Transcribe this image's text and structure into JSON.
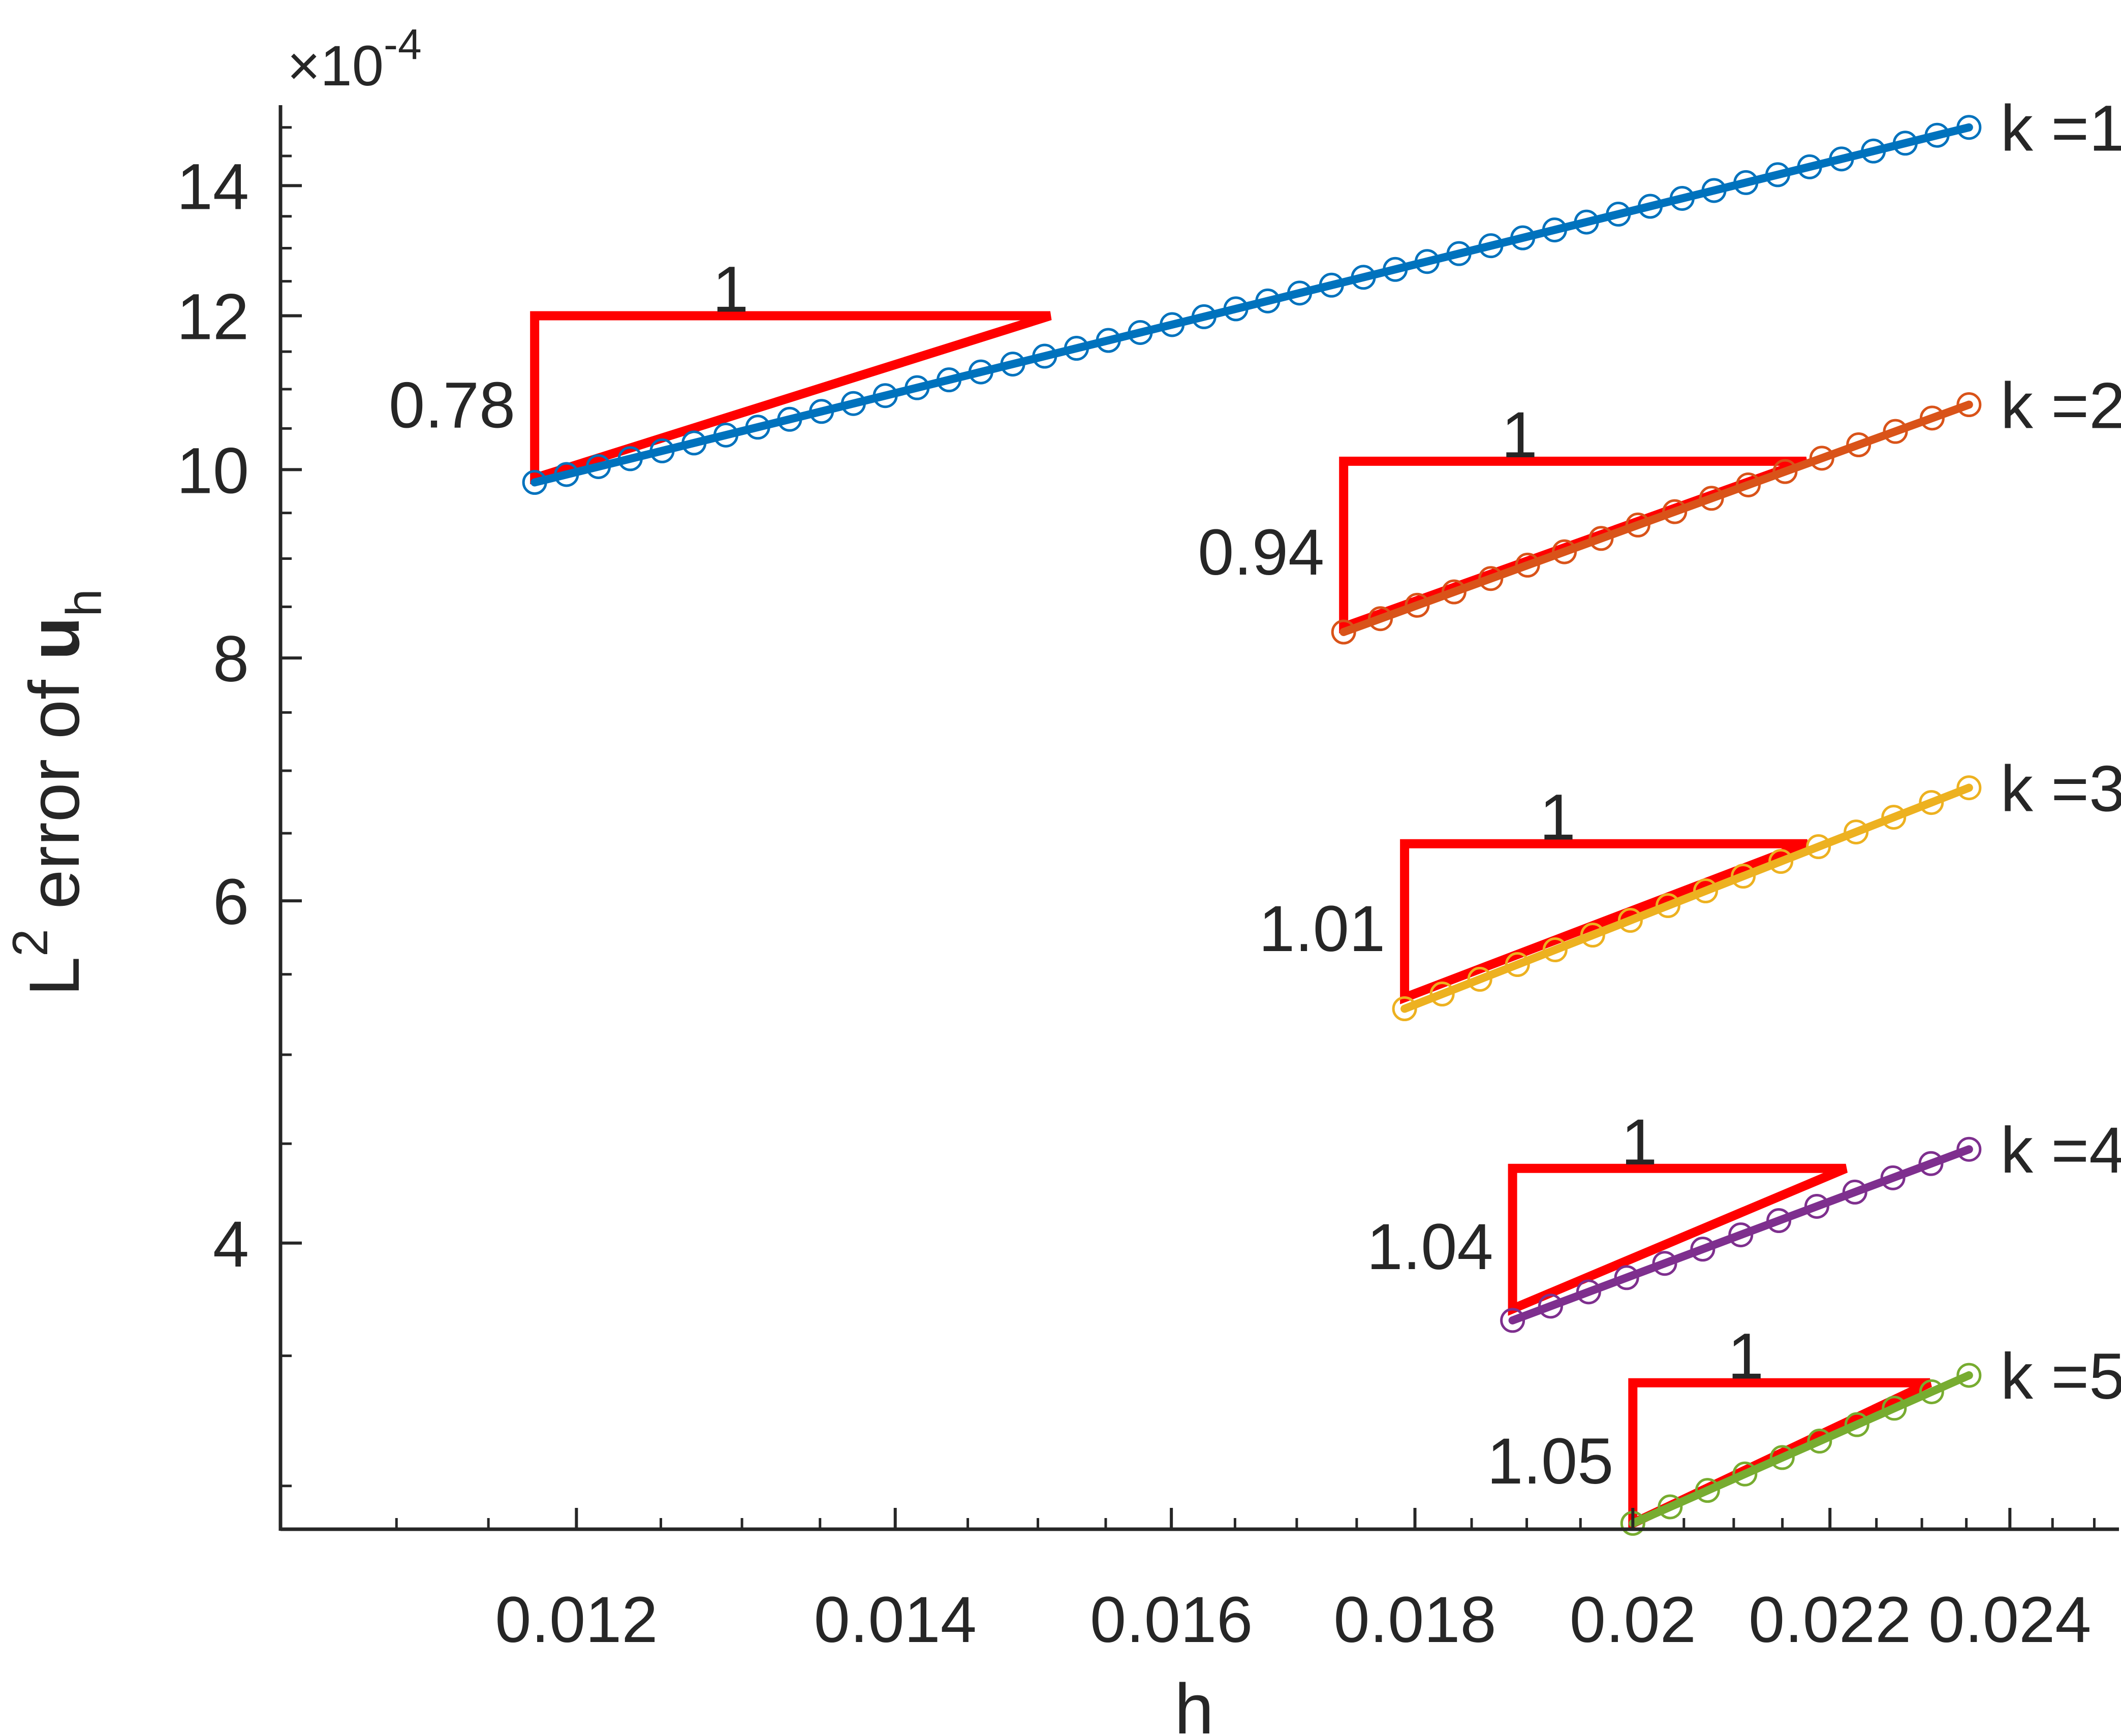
{
  "chart_data": {
    "type": "line",
    "title": "",
    "xlabel": "h",
    "ylabel": "L^2 error of u_h",
    "ylabel_parts": {
      "L": "L",
      "sup": "2",
      "mid": " error of ",
      "bold": "u",
      "sub": "h"
    },
    "scale": "log-log",
    "y_multiplier": "×10^-4",
    "y_multiplier_parts": {
      "times": "×",
      "base": "10",
      "exp": "-4"
    },
    "xlim": [
      0.0104,
      0.0253
    ],
    "ylim": [
      2.85,
      15.4
    ],
    "x_ticks": [
      0.012,
      0.014,
      0.016,
      0.018,
      0.02,
      0.022,
      0.024
    ],
    "x_tick_labels": [
      "0.012",
      "0.014",
      "0.016",
      "0.018",
      "0.02",
      "0.022",
      "0.024"
    ],
    "y_ticks": [
      4,
      6,
      8,
      10,
      12,
      14
    ],
    "y_tick_labels": [
      "4",
      "6",
      "8",
      "10",
      "12",
      "14"
    ],
    "grid": false,
    "legend": "none",
    "series": [
      {
        "name": "k =1",
        "color": "#0072BD",
        "h_min": 0.01176,
        "h_max": 0.02353,
        "y_start": 9.85,
        "y_end": 15.0,
        "points": 46
      },
      {
        "name": "k =2",
        "color": "#D95319",
        "h_min": 0.01739,
        "h_max": 0.02353,
        "y_start": 8.25,
        "y_end": 10.8,
        "points": 18
      },
      {
        "name": "k =3",
        "color": "#EDB120",
        "h_min": 0.01791,
        "h_max": 0.02353,
        "y_start": 5.28,
        "y_end": 6.86,
        "points": 16
      },
      {
        "name": "k =4",
        "color": "#7E2F8E",
        "h_min": 0.01887,
        "h_max": 0.02353,
        "y_start": 3.65,
        "y_end": 4.47,
        "points": 13
      },
      {
        "name": "k =5",
        "color": "#77AC30",
        "h_min": 0.02,
        "h_max": 0.02353,
        "y_start": 2.87,
        "y_end": 3.42,
        "points": 10
      }
    ],
    "slope_triangles": [
      {
        "series": "k =1",
        "run_label": "1",
        "rise_label": "0.78",
        "h_from": 0.01176,
        "h_to": 0.01509,
        "y_from": 9.9,
        "y_to": 12.0
      },
      {
        "series": "k =2",
        "run_label": "1",
        "rise_label": "0.94",
        "h_from": 0.01739,
        "h_to": 0.02175,
        "y_from": 8.3,
        "y_to": 10.1
      },
      {
        "series": "k =3",
        "run_label": "1",
        "rise_label": "1.01",
        "h_from": 0.01791,
        "h_to": 0.02176,
        "y_from": 5.35,
        "y_to": 6.42
      },
      {
        "series": "k =4",
        "run_label": "1",
        "rise_label": "1.04",
        "h_from": 0.01887,
        "h_to": 0.02217,
        "y_from": 3.7,
        "y_to": 4.37
      },
      {
        "series": "k =5",
        "run_label": "1",
        "rise_label": "1.05",
        "h_from": 0.02,
        "h_to": 0.02309,
        "y_from": 2.87,
        "y_to": 3.39
      }
    ],
    "triangle_color": "#FF0000"
  }
}
